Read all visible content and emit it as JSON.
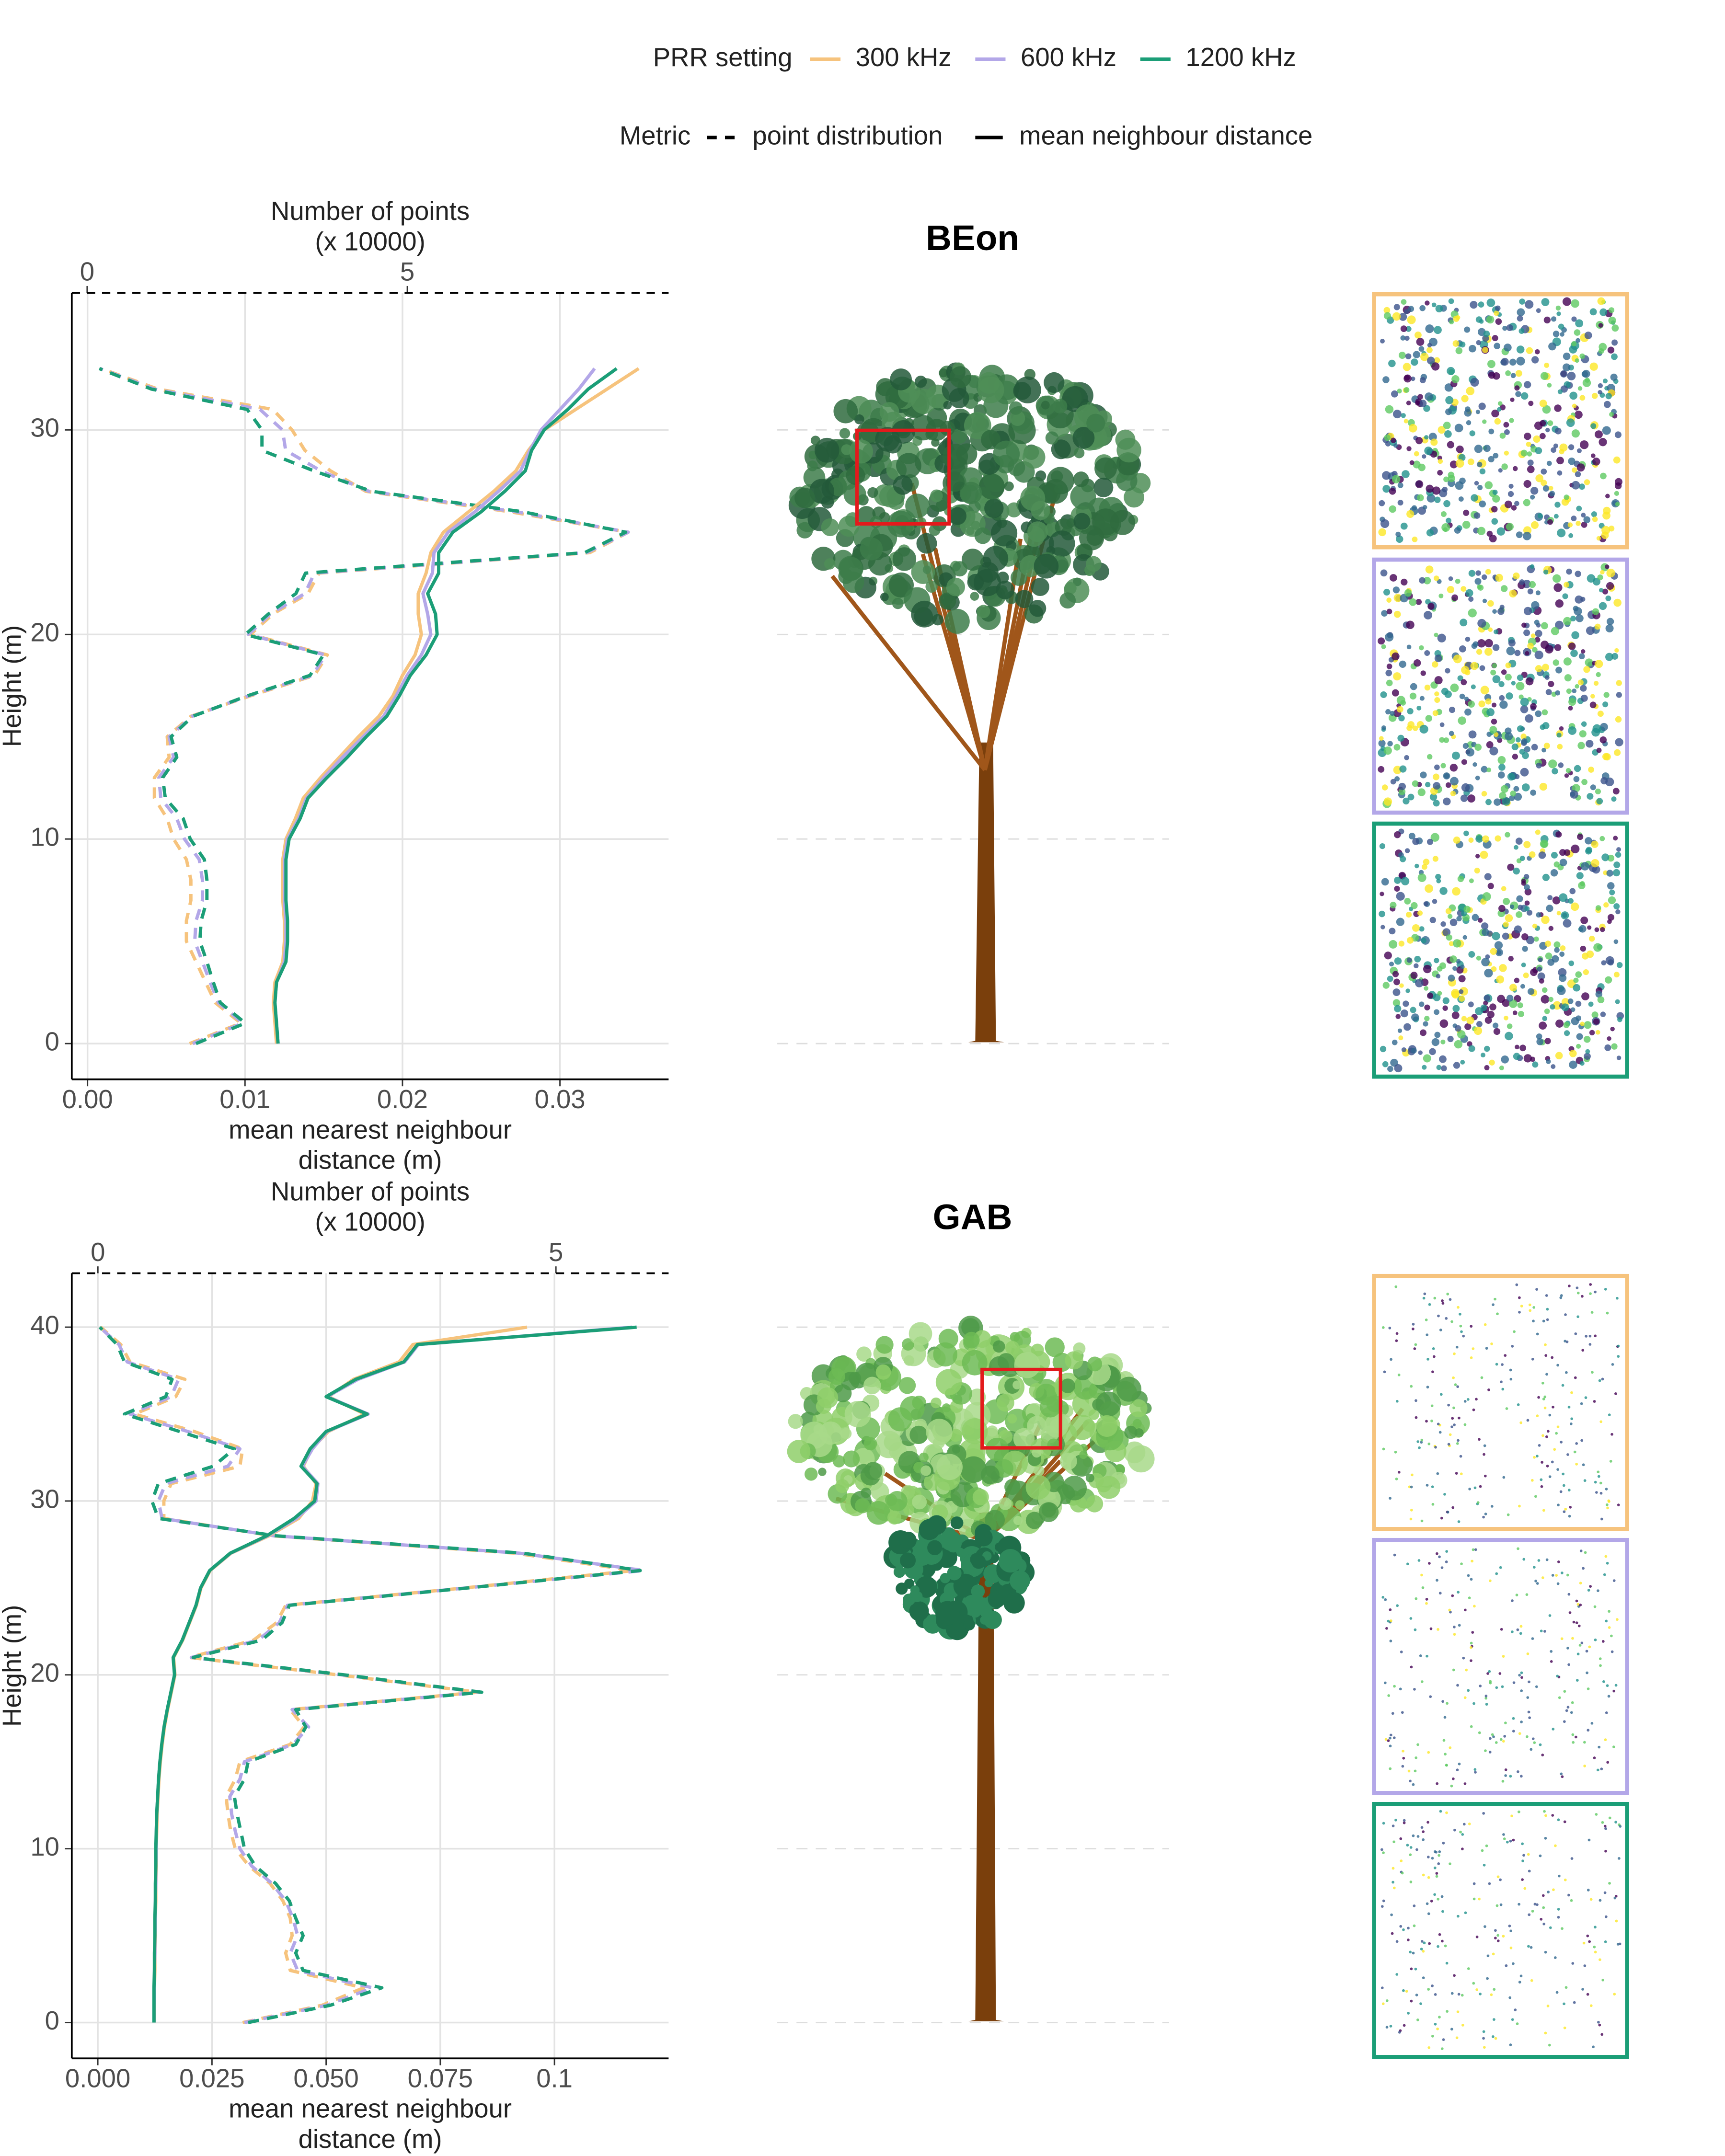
{
  "legend": {
    "title": "PRR setting",
    "items": [
      "300 kHz",
      "600 kHz",
      "1200 kHz"
    ],
    "colors": [
      "#f6c37d",
      "#b3a7e8",
      "#1b9e77"
    ],
    "metric_title": "Metric",
    "metric_items": [
      "point distribution",
      "mean neighbour distance"
    ]
  },
  "chart_data": [
    {
      "type": "line",
      "title": "BEon",
      "xlabel": [
        "mean nearest neighbour",
        "distance (m)"
      ],
      "x2label": [
        "Number of points",
        "(x 10000)"
      ],
      "ylabel": "Height (m)",
      "xlim": [
        -0.001,
        0.0369
      ],
      "xticks": [
        {
          "value": 0,
          "label": "0.00"
        },
        0.01,
        0.02,
        0.03
      ],
      "x2lim": [
        -0.24,
        9.08
      ],
      "x2ticks": [
        0,
        5
      ],
      "ylim": [
        -1.75,
        36.7
      ],
      "yticks": [
        0,
        10,
        20,
        30
      ],
      "grid": true,
      "y": [
        0,
        1,
        2,
        3,
        4,
        5,
        6,
        7,
        8,
        9,
        10,
        11,
        12,
        13,
        14,
        15,
        16,
        17,
        18,
        19,
        20,
        21,
        22,
        23,
        24,
        25,
        26,
        27,
        28,
        29,
        30,
        31,
        32,
        33
      ],
      "series": [
        {
          "color": "#f6c37d",
          "dashed": true,
          "axis": "x2",
          "values": [
            1.6,
            2.4,
            2.0,
            1.85,
            1.7,
            1.55,
            1.55,
            1.62,
            1.62,
            1.55,
            1.35,
            1.25,
            1.05,
            1.05,
            1.28,
            1.25,
            1.62,
            2.55,
            3.55,
            3.75,
            2.55,
            2.9,
            3.45,
            3.62,
            7.85,
            8.45,
            6.6,
            4.35,
            3.8,
            3.4,
            3.2,
            2.9,
            1.1,
            0.22
          ]
        },
        {
          "color": "#b3a7e8",
          "dashed": true,
          "axis": "x2",
          "values": [
            1.65,
            2.43,
            2.05,
            1.92,
            1.8,
            1.68,
            1.7,
            1.8,
            1.8,
            1.75,
            1.52,
            1.4,
            1.15,
            1.12,
            1.35,
            1.28,
            1.64,
            2.52,
            3.52,
            3.72,
            2.52,
            2.86,
            3.4,
            3.55,
            7.8,
            8.45,
            6.7,
            4.4,
            3.65,
            3.1,
            3.05,
            2.7,
            1.05,
            0.2
          ]
        },
        {
          "color": "#1b9e77",
          "dashed": true,
          "axis": "x2",
          "values": [
            1.7,
            2.47,
            2.08,
            1.97,
            1.87,
            1.76,
            1.78,
            1.87,
            1.87,
            1.83,
            1.61,
            1.5,
            1.22,
            1.18,
            1.4,
            1.31,
            1.65,
            2.5,
            3.48,
            3.69,
            2.47,
            2.83,
            3.26,
            3.41,
            7.77,
            8.41,
            6.8,
            4.44,
            3.54,
            2.73,
            2.73,
            2.5,
            1.0,
            0.19
          ]
        },
        {
          "color": "#f6c37d",
          "dashed": false,
          "axis": "x",
          "values": [
            0.012,
            0.0119,
            0.0118,
            0.0119,
            0.0124,
            0.0125,
            0.0125,
            0.0124,
            0.0124,
            0.0124,
            0.0126,
            0.0132,
            0.0137,
            0.0148,
            0.016,
            0.0172,
            0.0185,
            0.0194,
            0.02,
            0.0208,
            0.0212,
            0.021,
            0.021,
            0.0215,
            0.0218,
            0.0226,
            0.0242,
            0.0258,
            0.0272,
            0.028,
            0.029,
            0.031,
            0.033,
            0.035
          ]
        },
        {
          "color": "#b3a7e8",
          "dashed": false,
          "axis": "x",
          "values": [
            0.0121,
            0.012,
            0.0119,
            0.012,
            0.0125,
            0.0126,
            0.0126,
            0.0125,
            0.0125,
            0.0125,
            0.0127,
            0.0134,
            0.0139,
            0.015,
            0.0162,
            0.0175,
            0.0188,
            0.0196,
            0.0203,
            0.0212,
            0.0218,
            0.0216,
            0.0213,
            0.0219,
            0.022,
            0.0229,
            0.0246,
            0.0261,
            0.0275,
            0.0281,
            0.0288,
            0.03,
            0.0312,
            0.0322
          ]
        },
        {
          "color": "#1b9e77",
          "dashed": false,
          "axis": "x",
          "values": [
            0.0121,
            0.012,
            0.0119,
            0.012,
            0.0126,
            0.0127,
            0.0127,
            0.0126,
            0.0126,
            0.0126,
            0.0128,
            0.0135,
            0.014,
            0.0152,
            0.0165,
            0.0177,
            0.019,
            0.0198,
            0.0205,
            0.0215,
            0.0222,
            0.0221,
            0.0216,
            0.0223,
            0.0223,
            0.0232,
            0.025,
            0.0265,
            0.0278,
            0.0282,
            0.029,
            0.0305,
            0.0318,
            0.0336
          ]
        }
      ]
    },
    {
      "type": "line",
      "title": "GAB",
      "xlabel": [
        "mean nearest neighbour",
        "distance (m)"
      ],
      "x2label": [
        "Number of points",
        "(x 10000)"
      ],
      "ylabel": "Height (m)",
      "xlim": [
        -0.0057,
        0.125
      ],
      "xticks": [
        {
          "value": 0,
          "label": "0.000"
        },
        0.025,
        {
          "value": 0.05,
          "label": "0.050"
        },
        0.075,
        0.1
      ],
      "x2lim": [
        -0.285,
        6.23
      ],
      "x2ticks": [
        0,
        5
      ],
      "ylim": [
        -2.06,
        43.1
      ],
      "yticks": [
        0,
        10,
        20,
        30,
        40
      ],
      "grid": true,
      "y": [
        0,
        1,
        2,
        3,
        4,
        5,
        6,
        7,
        8,
        9,
        10,
        11,
        12,
        13,
        14,
        15,
        16,
        17,
        18,
        19,
        20,
        21,
        22,
        23,
        24,
        25,
        26,
        27,
        28,
        29,
        30,
        31,
        32,
        33,
        34,
        35,
        36,
        37,
        38,
        39,
        40
      ],
      "series": [
        {
          "color": "#f6c37d",
          "dashed": true,
          "axis": "x2",
          "values": [
            1.58,
            2.45,
            2.9,
            2.1,
            2.05,
            2.12,
            2.1,
            2.02,
            1.88,
            1.65,
            1.5,
            1.45,
            1.42,
            1.4,
            1.5,
            1.55,
            2.1,
            2.25,
            2.1,
            4.15,
            2.62,
            1.0,
            1.7,
            1.95,
            2.05,
            4.0,
            5.85,
            4.55,
            1.9,
            0.72,
            0.72,
            0.8,
            1.55,
            1.58,
            1.05,
            0.4,
            0.85,
            0.95,
            0.35,
            0.25,
            0.03
          ]
        },
        {
          "color": "#b3a7e8",
          "dashed": true,
          "axis": "x2",
          "values": [
            1.6,
            2.5,
            3.0,
            2.18,
            2.1,
            2.18,
            2.13,
            2.05,
            1.9,
            1.68,
            1.55,
            1.5,
            1.46,
            1.44,
            1.55,
            1.6,
            2.13,
            2.3,
            2.12,
            4.17,
            2.66,
            1.02,
            1.75,
            1.98,
            2.07,
            4.02,
            5.96,
            4.6,
            1.92,
            0.7,
            0.66,
            0.74,
            1.42,
            1.55,
            0.98,
            0.35,
            0.8,
            0.88,
            0.32,
            0.23,
            0.02
          ]
        },
        {
          "color": "#1b9e77",
          "dashed": true,
          "axis": "x2",
          "values": [
            1.64,
            2.54,
            3.1,
            2.24,
            2.16,
            2.24,
            2.16,
            2.09,
            1.94,
            1.72,
            1.6,
            1.56,
            1.52,
            1.49,
            1.6,
            1.64,
            2.16,
            2.27,
            2.16,
            4.19,
            2.69,
            1.04,
            1.79,
            2.01,
            2.09,
            4.04,
            5.92,
            4.64,
            1.94,
            0.66,
            0.59,
            0.66,
            1.26,
            1.49,
            0.89,
            0.29,
            0.74,
            0.81,
            0.29,
            0.21,
            0.02
          ]
        },
        {
          "color": "#f6c37d",
          "dashed": false,
          "axis": "x",
          "values": [
            0.0124,
            0.0124,
            0.0124,
            0.0125,
            0.0125,
            0.0126,
            0.0126,
            0.0127,
            0.0127,
            0.0128,
            0.0128,
            0.0129,
            0.013,
            0.0132,
            0.0134,
            0.0137,
            0.0141,
            0.0146,
            0.0153,
            0.0161,
            0.0169,
            0.0166,
            0.0186,
            0.0201,
            0.0216,
            0.0226,
            0.0246,
            0.0292,
            0.0375,
            0.044,
            0.047,
            0.0478,
            0.045,
            0.0468,
            0.0505,
            0.0585,
            0.0505,
            0.056,
            0.066,
            0.069,
            0.094
          ]
        },
        {
          "color": "#b3a7e8",
          "dashed": false,
          "axis": "x",
          "values": [
            0.0123,
            0.0123,
            0.0124,
            0.0124,
            0.0125,
            0.0125,
            0.0126,
            0.0126,
            0.0127,
            0.0127,
            0.0128,
            0.0128,
            0.0129,
            0.0131,
            0.0133,
            0.0136,
            0.014,
            0.0145,
            0.0152,
            0.016,
            0.0168,
            0.0165,
            0.0185,
            0.02,
            0.0215,
            0.0225,
            0.0245,
            0.0291,
            0.0372,
            0.0435,
            0.0478,
            0.0482,
            0.0448,
            0.047,
            0.0502,
            0.0592,
            0.0502,
            0.057,
            0.0672,
            0.0702,
            0.117
          ]
        },
        {
          "color": "#1b9e77",
          "dashed": false,
          "axis": "x",
          "values": [
            0.0123,
            0.0123,
            0.0123,
            0.0124,
            0.0124,
            0.0125,
            0.0125,
            0.0126,
            0.0126,
            0.0127,
            0.0127,
            0.0128,
            0.0129,
            0.0131,
            0.0133,
            0.0136,
            0.014,
            0.0145,
            0.0152,
            0.016,
            0.0168,
            0.0165,
            0.0185,
            0.02,
            0.0215,
            0.0225,
            0.0245,
            0.029,
            0.037,
            0.043,
            0.0475,
            0.048,
            0.0445,
            0.0465,
            0.05,
            0.059,
            0.05,
            0.0565,
            0.067,
            0.07,
            0.118
          ]
        }
      ]
    }
  ]
}
